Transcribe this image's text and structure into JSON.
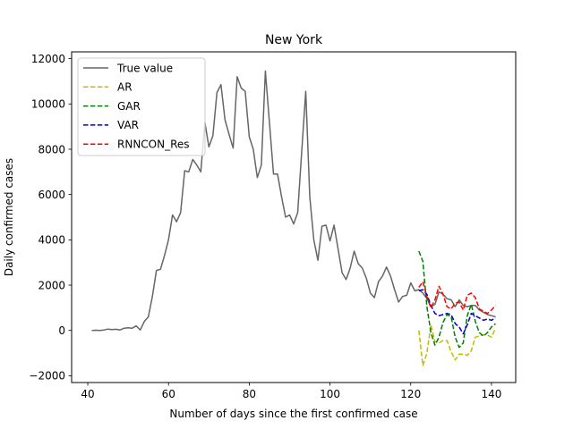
{
  "chart_data": {
    "type": "line",
    "title": "New York",
    "xlabel": "Number of days since the first confirmed case",
    "ylabel": "Daily confirmed cases",
    "xlim": [
      36,
      146
    ],
    "ylim": [
      -2300,
      12300
    ],
    "xticks": [
      40,
      60,
      80,
      100,
      120,
      140
    ],
    "yticks": [
      -2000,
      0,
      2000,
      4000,
      6000,
      8000,
      10000,
      12000
    ],
    "legend_position": "top-left",
    "series": [
      {
        "name": "True value",
        "color": "#666666",
        "dash": "solid",
        "x": [
          41,
          42,
          43,
          44,
          45,
          46,
          47,
          48,
          49,
          50,
          51,
          52,
          53,
          54,
          55,
          56,
          57,
          58,
          59,
          60,
          61,
          62,
          63,
          64,
          65,
          66,
          67,
          68,
          69,
          70,
          71,
          72,
          73,
          74,
          75,
          76,
          77,
          78,
          79,
          80,
          81,
          82,
          83,
          84,
          85,
          86,
          87,
          88,
          89,
          90,
          91,
          92,
          93,
          94,
          95,
          96,
          97,
          98,
          99,
          100,
          101,
          102,
          103,
          104,
          105,
          106,
          107,
          108,
          109,
          110,
          111,
          112,
          113,
          114,
          115,
          116,
          117,
          118,
          119,
          120,
          121,
          122,
          123,
          124,
          125,
          126,
          127,
          128,
          129,
          130,
          131,
          132,
          133,
          134,
          135,
          136,
          137,
          138,
          139,
          140,
          141
        ],
        "values": [
          0,
          10,
          0,
          20,
          60,
          40,
          50,
          20,
          100,
          120,
          100,
          200,
          20,
          400,
          600,
          1500,
          2650,
          2700,
          3300,
          4000,
          5100,
          4800,
          5200,
          7050,
          7000,
          7550,
          7300,
          7000,
          9200,
          8100,
          8600,
          10500,
          10850,
          9300,
          8650,
          8050,
          11200,
          10700,
          10550,
          8550,
          8000,
          6750,
          7300,
          11450,
          9200,
          6900,
          6900,
          5900,
          5000,
          5100,
          4700,
          5200,
          7900,
          10550,
          5900,
          4000,
          3100,
          4600,
          4650,
          3950,
          4650,
          3600,
          2550,
          2250,
          2750,
          3500,
          2950,
          2750,
          2300,
          1650,
          1450,
          2150,
          2400,
          2800,
          2400,
          1800,
          1250,
          1500,
          1550,
          2100,
          1750,
          1800,
          1650,
          1400,
          1050,
          1150,
          1700,
          1600,
          1400,
          1350,
          1050,
          1350,
          1100,
          1050,
          1100,
          1100,
          900,
          800,
          700,
          650,
          600
        ]
      },
      {
        "name": "AR",
        "color": "#bfbf00",
        "dash": "dashed",
        "x": [
          122,
          123,
          124,
          125,
          126,
          127,
          128,
          129,
          130,
          131,
          132,
          133,
          134,
          135,
          136,
          137,
          138,
          139,
          140,
          141
        ],
        "values": [
          0,
          -1550,
          -1000,
          250,
          -500,
          -550,
          -450,
          -450,
          -950,
          -1300,
          -1050,
          -1050,
          -1100,
          -900,
          -300,
          -250,
          -200,
          -200,
          -300,
          100
        ]
      },
      {
        "name": "GAR",
        "color": "#008000",
        "dash": "dashed",
        "x": [
          122,
          123,
          124,
          125,
          126,
          127,
          128,
          129,
          130,
          131,
          132,
          133,
          134,
          135,
          136,
          137,
          138,
          139,
          140,
          141
        ],
        "values": [
          3500,
          3050,
          1050,
          -100,
          -650,
          -300,
          350,
          700,
          600,
          -300,
          -750,
          -550,
          650,
          1150,
          400,
          -100,
          -250,
          -100,
          150,
          300
        ]
      },
      {
        "name": "VAR",
        "color": "#0000cc",
        "dash": "dashed",
        "x": [
          122,
          123,
          124,
          125,
          126,
          127,
          128,
          129,
          130,
          131,
          132,
          133,
          134,
          135,
          136,
          137,
          138,
          139,
          140,
          141
        ],
        "values": [
          1750,
          1800,
          1600,
          1100,
          750,
          650,
          700,
          750,
          700,
          300,
          150,
          -150,
          250,
          750,
          650,
          550,
          450,
          500,
          450,
          550
        ]
      },
      {
        "name": "RNNCON_Res",
        "color": "#ff0000",
        "dash": "dashed",
        "x": [
          122,
          123,
          124,
          125,
          126,
          127,
          128,
          129,
          130,
          131,
          132,
          133,
          134,
          135,
          136,
          137,
          138,
          139,
          140,
          141
        ],
        "values": [
          1900,
          2150,
          1500,
          1000,
          1350,
          1950,
          1600,
          1050,
          950,
          1200,
          1250,
          900,
          1550,
          1650,
          1450,
          950,
          850,
          750,
          900,
          1100
        ]
      }
    ]
  }
}
